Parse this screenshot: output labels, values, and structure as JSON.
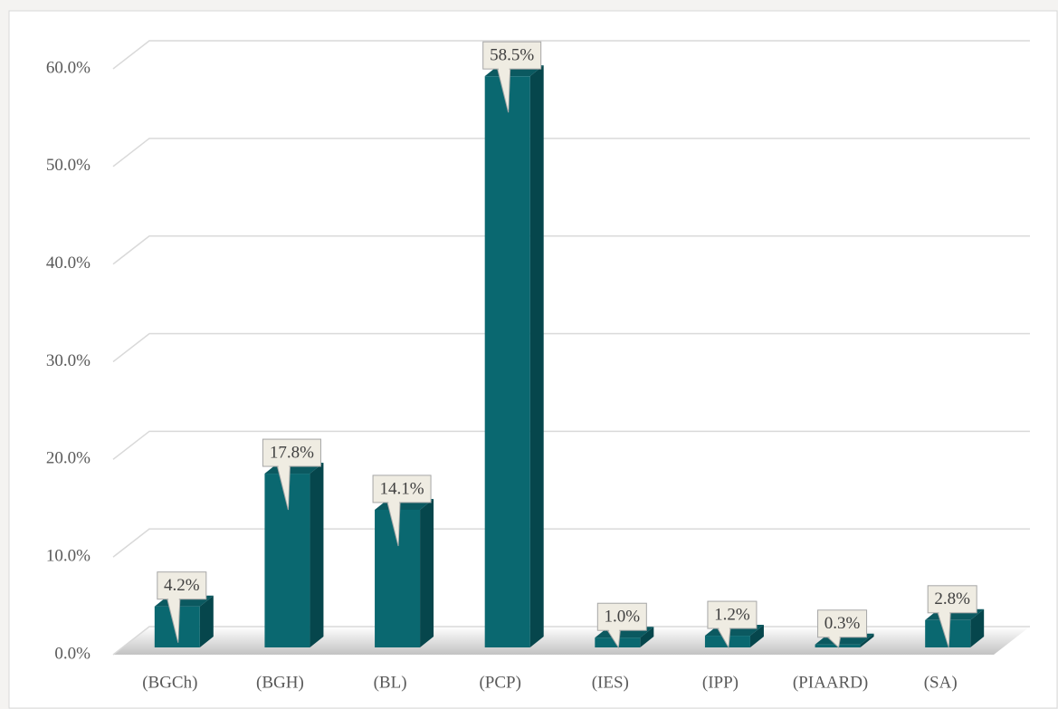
{
  "chart_data": {
    "type": "bar",
    "categories": [
      "(BGCh)",
      "(BGH)",
      "(BL)",
      "(PCP)",
      "(IES)",
      "(IPP)",
      "(PIAARD)",
      "(SA)"
    ],
    "values": [
      4.2,
      17.8,
      14.1,
      58.5,
      1.0,
      1.2,
      0.3,
      2.8
    ],
    "value_labels": [
      "4.2%",
      "17.8%",
      "14.1%",
      "58.5%",
      "1.0%",
      "1.2%",
      "0.3%",
      "2.8%"
    ],
    "color": "#0a6870",
    "ylim": [
      0,
      60
    ],
    "yticks": [
      {
        "value": 0,
        "label": "0.0%"
      },
      {
        "value": 10,
        "label": "10.0%"
      },
      {
        "value": 20,
        "label": "20.0%"
      },
      {
        "value": 30,
        "label": "30.0%"
      },
      {
        "value": 40,
        "label": "40.0%"
      },
      {
        "value": 50,
        "label": "50.0%"
      },
      {
        "value": 60,
        "label": "60.0%"
      }
    ],
    "grid": true
  }
}
